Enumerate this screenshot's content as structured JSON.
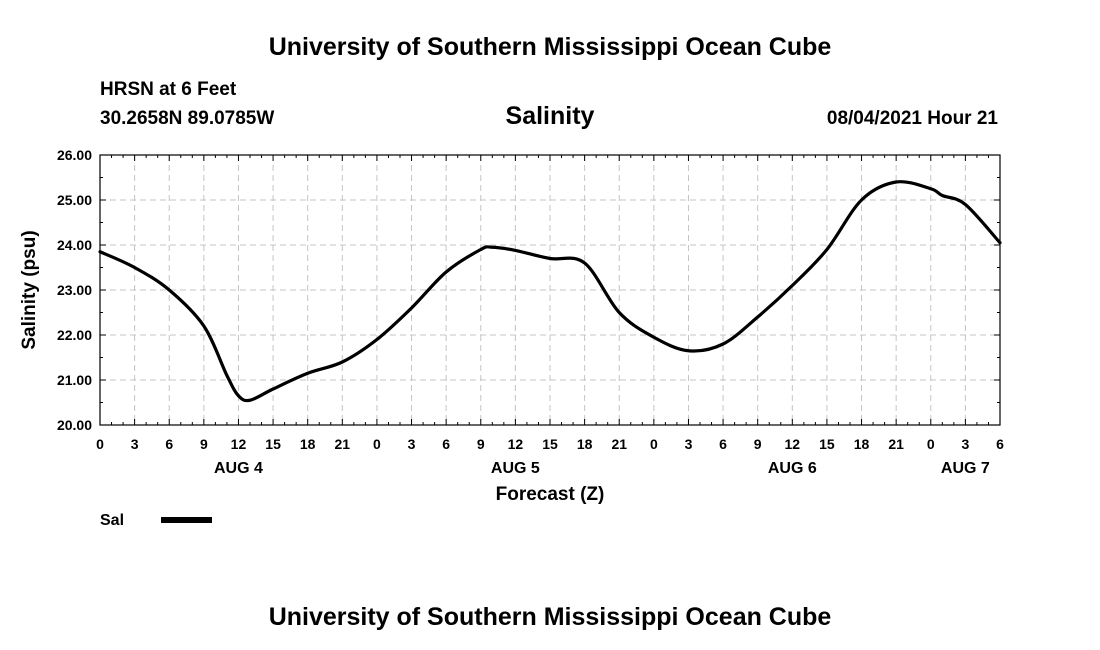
{
  "header": {
    "top_title": "University of Southern Mississippi Ocean Cube",
    "bottom_title": "University of Southern Mississippi Ocean Cube",
    "station": "HRSN at 6 Feet",
    "coordinates": "30.2658N  89.0785W",
    "timestamp": "08/04/2021 Hour 21"
  },
  "chart_data": {
    "type": "line",
    "title": "Salinity",
    "xlabel": "Forecast (Z)",
    "ylabel": "Salinity (psu)",
    "ylim": [
      20,
      26
    ],
    "y_ticks": [
      "20.00",
      "21.00",
      "22.00",
      "23.00",
      "24.00",
      "25.00",
      "26.00"
    ],
    "x_range_hours": [
      0,
      78
    ],
    "x_tick_labels": [
      "0",
      "3",
      "6",
      "9",
      "12",
      "15",
      "18",
      "21",
      "0",
      "3",
      "6",
      "9",
      "12",
      "15",
      "18",
      "21",
      "0",
      "3",
      "6",
      "9",
      "12",
      "15",
      "18",
      "21",
      "0",
      "3",
      "6"
    ],
    "date_labels": [
      {
        "label": "AUG 4",
        "hour": 12
      },
      {
        "label": "AUG 5",
        "hour": 36
      },
      {
        "label": "AUG 6",
        "hour": 60
      },
      {
        "label": "AUG 7",
        "hour": 75
      }
    ],
    "grid": true,
    "series": [
      {
        "name": "Sal",
        "color": "#000000",
        "x": [
          0,
          3,
          6,
          9,
          11,
          12,
          13,
          15,
          18,
          21,
          24,
          27,
          30,
          33,
          34,
          36,
          39,
          42,
          45,
          48,
          51,
          54,
          57,
          60,
          63,
          66,
          69,
          72,
          73,
          75,
          78
        ],
        "values": [
          23.85,
          23.5,
          23.0,
          22.2,
          21.1,
          20.65,
          20.55,
          20.8,
          21.15,
          21.4,
          21.9,
          22.6,
          23.4,
          23.9,
          23.95,
          23.88,
          23.7,
          23.6,
          22.5,
          21.95,
          21.65,
          21.8,
          22.4,
          23.1,
          23.9,
          25.0,
          25.4,
          25.25,
          25.1,
          24.9,
          24.05
        ]
      }
    ],
    "legend": [
      {
        "label": "Sal",
        "color": "#000000"
      }
    ]
  }
}
